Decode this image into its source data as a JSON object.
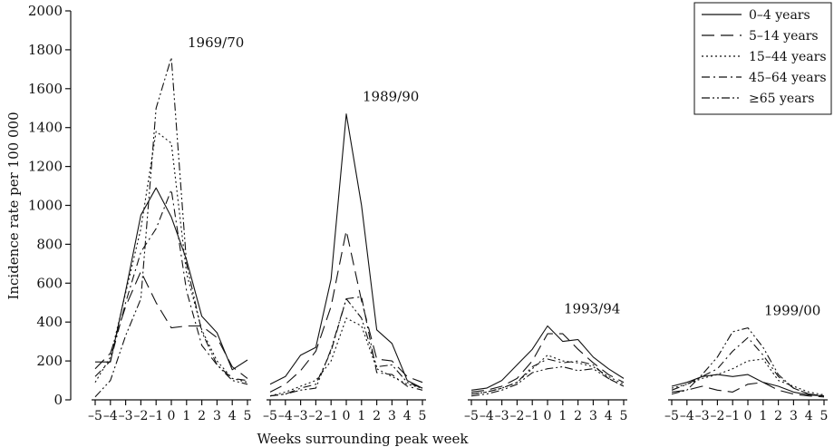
{
  "chart_data": {
    "type": "line",
    "title": "",
    "xlabel": "Weeks surrounding peak week",
    "ylabel": "Incidence rate per 100 000",
    "ylim": [
      0,
      2000
    ],
    "yticks": [
      0,
      200,
      400,
      600,
      800,
      1000,
      1200,
      1400,
      1600,
      1800,
      2000
    ],
    "x": [
      -5,
      -4,
      -3,
      -2,
      -1,
      0,
      1,
      2,
      3,
      4,
      5
    ],
    "xtick_labels": [
      "–5",
      "–4",
      "–3",
      "–2",
      "–1",
      "0",
      "1",
      "2",
      "3",
      "4",
      "5"
    ],
    "legend_position": "top-right",
    "series_styles": [
      {
        "name": "0–4 years",
        "dash": "none"
      },
      {
        "name": "5–14 years",
        "dash": "long-dash"
      },
      {
        "name": "15–44 years",
        "dash": "dotted"
      },
      {
        "name": "45–64 years",
        "dash": "dash-dot"
      },
      {
        "name": "≥65 years",
        "dash": "dash-dot-dot"
      }
    ],
    "panels": [
      {
        "label": "1969/70",
        "series": [
          {
            "name": "0–4 years",
            "values": [
              195,
              195,
              560,
              950,
              1090,
              940,
              720,
              430,
              345,
              155,
              205
            ]
          },
          {
            "name": "5–14 years",
            "values": [
              160,
              240,
              480,
              660,
              500,
              370,
              380,
              380,
              320,
              170,
              110
            ]
          },
          {
            "name": "15–44 years",
            "values": [
              90,
              220,
              550,
              880,
              1380,
              1320,
              650,
              360,
              200,
              110,
              90
            ]
          },
          {
            "name": "45–64 years",
            "values": [
              120,
              200,
              500,
              760,
              880,
              1080,
              560,
              280,
              180,
              110,
              100
            ]
          },
          {
            "name": "≥65 years",
            "values": [
              15,
              100,
              330,
              520,
              1500,
              1760,
              700,
              350,
              180,
              100,
              80
            ]
          }
        ]
      },
      {
        "label": "1989/90",
        "series": [
          {
            "name": "0–4 years",
            "values": [
              80,
              120,
              230,
              270,
              620,
              1470,
              1000,
              360,
              290,
              100,
              60
            ]
          },
          {
            "name": "5–14 years",
            "values": [
              40,
              80,
              150,
              250,
              480,
              870,
              510,
              210,
              200,
              120,
              90
            ]
          },
          {
            "name": "15–44 years",
            "values": [
              20,
              40,
              70,
              100,
              200,
              420,
              380,
              160,
              120,
              80,
              60
            ]
          },
          {
            "name": "45–64 years",
            "values": [
              20,
              30,
              60,
              80,
              250,
              520,
              530,
              140,
              130,
              70,
              50
            ]
          },
          {
            "name": "≥65 years",
            "values": [
              20,
              30,
              50,
              60,
              260,
              520,
              420,
              170,
              180,
              90,
              60
            ]
          }
        ]
      },
      {
        "label": "1993/94",
        "series": [
          {
            "name": "0–4 years",
            "values": [
              50,
              60,
              100,
              180,
              260,
              380,
              300,
              310,
              220,
              160,
              110
            ]
          },
          {
            "name": "5–14 years",
            "values": [
              40,
              50,
              70,
              110,
              200,
              340,
              340,
              260,
              190,
              130,
              90
            ]
          },
          {
            "name": "15–44 years",
            "values": [
              30,
              40,
              60,
              90,
              160,
              230,
              200,
              190,
              170,
              120,
              80
            ]
          },
          {
            "name": "45–64 years",
            "values": [
              30,
              40,
              60,
              90,
              170,
              210,
              190,
              200,
              180,
              110,
              70
            ]
          },
          {
            "name": "≥65 years",
            "values": [
              20,
              30,
              50,
              80,
              140,
              160,
              170,
              150,
              160,
              110,
              70
            ]
          }
        ]
      },
      {
        "label": "1999/00",
        "series": [
          {
            "name": "0–4 years",
            "values": [
              70,
              90,
              120,
              130,
              120,
              130,
              90,
              70,
              40,
              25,
              20
            ]
          },
          {
            "name": "5–14 years",
            "values": [
              40,
              50,
              70,
              50,
              40,
              80,
              90,
              50,
              30,
              20,
              15
            ]
          },
          {
            "name": "15–44 years",
            "values": [
              60,
              80,
              110,
              130,
              160,
              200,
              210,
              100,
              70,
              40,
              25
            ]
          },
          {
            "name": "45–64 years",
            "values": [
              50,
              80,
              120,
              160,
              250,
              320,
              230,
              120,
              60,
              30,
              20
            ]
          },
          {
            "name": "≥65 years",
            "values": [
              30,
              50,
              130,
              220,
              350,
              370,
              270,
              130,
              60,
              30,
              20
            ]
          }
        ]
      }
    ]
  }
}
